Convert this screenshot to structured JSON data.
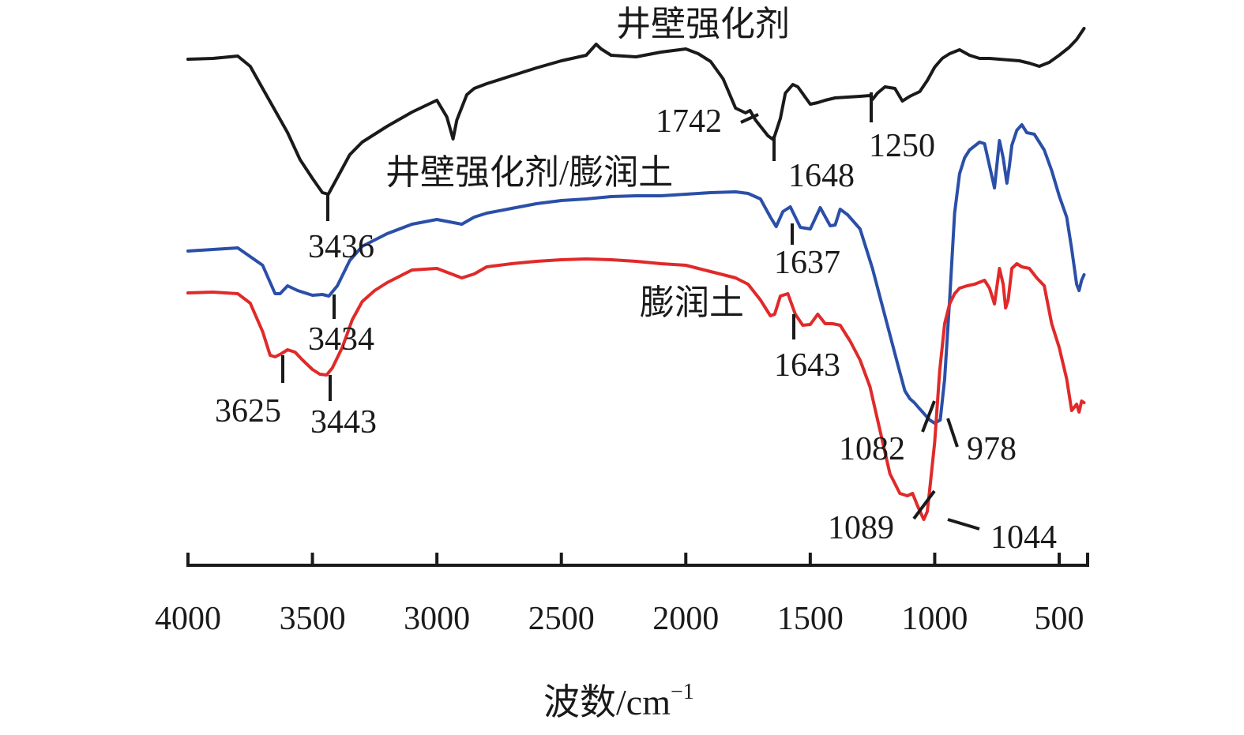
{
  "chart_data": {
    "type": "line",
    "xlabel": "波数/cm",
    "xlabel_sup": "−1",
    "xlim": [
      4000,
      400
    ],
    "x_reversed": true,
    "y_axis_shown": false,
    "x_ticks": [
      4000,
      3500,
      3000,
      2500,
      2000,
      1500,
      1000,
      500
    ],
    "x_tick_labels": [
      "4000",
      "3500",
      "3000",
      "2500",
      "2000",
      "1500",
      "1000",
      "500"
    ],
    "series": [
      {
        "name": "井壁强化剂",
        "color": "#1a1a1a",
        "x": [
          4000,
          3900,
          3800,
          3750,
          3700,
          3650,
          3600,
          3550,
          3500,
          3460,
          3436,
          3400,
          3350,
          3300,
          3200,
          3100,
          3000,
          2960,
          2935,
          2920,
          2880,
          2850,
          2800,
          2700,
          2600,
          2500,
          2400,
          2360,
          2340,
          2300,
          2200,
          2100,
          2000,
          1950,
          1900,
          1850,
          1800,
          1760,
          1742,
          1720,
          1700,
          1670,
          1648,
          1620,
          1600,
          1570,
          1550,
          1500,
          1470,
          1440,
          1400,
          1350,
          1300,
          1260,
          1250,
          1230,
          1200,
          1160,
          1130,
          1100,
          1060,
          1030,
          1000,
          970,
          940,
          900,
          860,
          820,
          780,
          740,
          700,
          660,
          620,
          580,
          540,
          500,
          460,
          430,
          400
        ],
        "y": [
          75,
          74,
          71,
          84,
          112,
          140,
          168,
          202,
          226,
          244,
          246,
          225,
          196,
          180,
          160,
          142,
          127,
          148,
          176,
          152,
          120,
          112,
          106,
          96,
          86,
          77,
          70,
          56,
          62,
          70,
          72,
          66,
          62,
          68,
          78,
          100,
          137,
          143,
          140,
          152,
          160,
          172,
          177,
          150,
          118,
          107,
          110,
          132,
          130,
          127,
          124,
          123,
          122,
          121,
          126,
          118,
          110,
          112,
          128,
          122,
          116,
          102,
          85,
          74,
          68,
          63,
          70,
          74,
          74,
          75,
          76,
          77,
          80,
          84,
          79,
          70,
          60,
          50,
          36
        ]
      },
      {
        "name": "井壁强化剂/膨润土",
        "color": "#2b4fa8",
        "x": [
          4000,
          3900,
          3800,
          3700,
          3650,
          3630,
          3600,
          3560,
          3500,
          3460,
          3434,
          3400,
          3350,
          3300,
          3200,
          3100,
          3000,
          2900,
          2850,
          2800,
          2700,
          2600,
          2500,
          2400,
          2300,
          2200,
          2100,
          2000,
          1900,
          1800,
          1750,
          1700,
          1660,
          1637,
          1610,
          1580,
          1540,
          1500,
          1460,
          1420,
          1400,
          1380,
          1350,
          1300,
          1250,
          1200,
          1150,
          1120,
          1100,
          1082,
          1060,
          1040,
          1020,
          1000,
          978,
          960,
          940,
          920,
          900,
          880,
          860,
          820,
          800,
          780,
          760,
          740,
          725,
          710,
          700,
          690,
          670,
          650,
          630,
          600,
          560,
          530,
          500,
          470,
          450,
          430,
          420,
          410,
          400
        ],
        "y": [
          318,
          316,
          314,
          336,
          372,
          372,
          362,
          368,
          374,
          373,
          375,
          362,
          330,
          312,
          296,
          284,
          278,
          284,
          275,
          270,
          264,
          258,
          254,
          252,
          249,
          248,
          248,
          246,
          244,
          243,
          245,
          252,
          275,
          287,
          268,
          262,
          288,
          290,
          263,
          286,
          285,
          265,
          272,
          290,
          340,
          400,
          460,
          495,
          505,
          510,
          518,
          525,
          532,
          536,
          532,
          480,
          380,
          270,
          220,
          200,
          190,
          180,
          182,
          210,
          238,
          178,
          200,
          232,
          210,
          184,
          165,
          158,
          168,
          170,
          190,
          216,
          248,
          275,
          315,
          360,
          368,
          355,
          348
        ]
      },
      {
        "name": "膨润土",
        "color": "#e02a2a",
        "x": [
          4000,
          3900,
          3800,
          3750,
          3700,
          3670,
          3650,
          3625,
          3600,
          3570,
          3540,
          3500,
          3470,
          3443,
          3420,
          3380,
          3340,
          3300,
          3250,
          3200,
          3150,
          3100,
          3000,
          2950,
          2900,
          2850,
          2800,
          2700,
          2600,
          2500,
          2400,
          2300,
          2200,
          2100,
          2000,
          1950,
          1900,
          1850,
          1800,
          1750,
          1700,
          1660,
          1643,
          1620,
          1590,
          1560,
          1530,
          1500,
          1470,
          1440,
          1410,
          1380,
          1340,
          1300,
          1260,
          1220,
          1180,
          1140,
          1110,
          1089,
          1070,
          1050,
          1044,
          1030,
          1020,
          1000,
          980,
          960,
          940,
          920,
          900,
          870,
          840,
          800,
          780,
          760,
          740,
          725,
          715,
          705,
          690,
          670,
          650,
          620,
          590,
          560,
          530,
          500,
          470,
          450,
          430,
          420,
          410,
          400
        ],
        "y": [
          371,
          370,
          372,
          384,
          420,
          450,
          452,
          448,
          443,
          446,
          456,
          468,
          474,
          475,
          466,
          440,
          405,
          382,
          368,
          358,
          350,
          342,
          340,
          346,
          352,
          347,
          338,
          334,
          331,
          329,
          328,
          329,
          331,
          334,
          336,
          340,
          344,
          348,
          352,
          360,
          380,
          400,
          398,
          375,
          372,
          398,
          412,
          411,
          398,
          410,
          410,
          412,
          432,
          456,
          490,
          545,
          600,
          625,
          628,
          625,
          640,
          654,
          658,
          648,
          620,
          560,
          470,
          410,
          385,
          372,
          365,
          362,
          360,
          355,
          365,
          385,
          340,
          360,
          390,
          380,
          340,
          334,
          338,
          340,
          352,
          362,
          410,
          440,
          480,
          520,
          512,
          522,
          508,
          510
        ]
      }
    ],
    "annotations": [
      {
        "label": "3436",
        "series": "井壁强化剂",
        "x": 3436
      },
      {
        "label": "1742",
        "series": "井壁强化剂",
        "x": 1742
      },
      {
        "label": "1648",
        "series": "井壁强化剂",
        "x": 1648
      },
      {
        "label": "1250",
        "series": "井壁强化剂",
        "x": 1250
      },
      {
        "label": "1637",
        "series": "井壁强化剂/膨润土",
        "x": 1637
      },
      {
        "label": "3434",
        "series": "井壁强化剂/膨润土",
        "x": 3434
      },
      {
        "label": "1082",
        "series": "井壁强化剂/膨润土",
        "x": 1082
      },
      {
        "label": "978",
        "series": "井壁强化剂/膨润土",
        "x": 978
      },
      {
        "label": "3625",
        "series": "膨润土",
        "x": 3625
      },
      {
        "label": "3443",
        "series": "膨润土",
        "x": 3443
      },
      {
        "label": "1643",
        "series": "膨润土",
        "x": 1643
      },
      {
        "label": "1089",
        "series": "膨润土",
        "x": 1089
      },
      {
        "label": "1044",
        "series": "膨润土",
        "x": 1044
      }
    ]
  }
}
